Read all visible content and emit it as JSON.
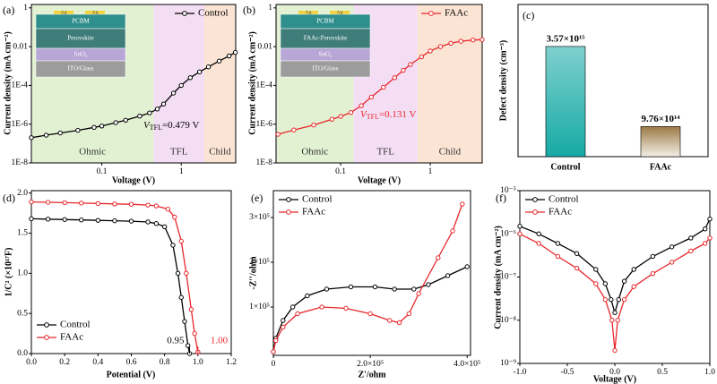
{
  "chart_data": [
    {
      "type": "line",
      "panel": "(a)",
      "xlabel": "Voltage (V)",
      "ylabel": "Current density (mA cm⁻²)",
      "xlog": true,
      "ylog": true,
      "xlim": [
        0.013,
        4.85
      ],
      "ylim": [
        1e-08,
        1.5
      ],
      "xticks": [
        0.1,
        1
      ],
      "yticks": [
        {
          "value": 1e-08,
          "label": "1E-8"
        },
        {
          "value": 1e-06,
          "label": "1E-6"
        },
        {
          "value": 0.0001,
          "label": "1E-4"
        },
        0.01,
        1
      ],
      "legend": "upper right",
      "regions": [
        {
          "label": "Ohmic",
          "from": 0.013,
          "to": 0.45,
          "color": "#e3f1d3"
        },
        {
          "label": "TFL",
          "from": 0.45,
          "to": 1.95,
          "color": "#f4def4"
        },
        {
          "label": "Child",
          "from": 1.95,
          "to": 4.85,
          "color": "#fbe4d4"
        }
      ],
      "inset": {
        "top": "Ag",
        "layers": [
          "PCBM",
          "Perovskite",
          "SnO₂",
          "ITO/Glass"
        ]
      },
      "annotation": {
        "text": "V",
        "sub": "TFL",
        "rest": "=0.479 V"
      },
      "series": [
        {
          "name": "Control",
          "color": "#000000",
          "x": [
            0.013,
            0.02,
            0.03,
            0.05,
            0.08,
            0.1,
            0.15,
            0.2,
            0.3,
            0.4,
            0.5,
            0.6,
            0.8,
            1,
            1.3,
            1.7,
            2.2,
            3,
            4,
            4.8
          ],
          "values": [
            2e-07,
            2.7e-07,
            3.5e-07,
            4.8e-07,
            6.8e-07,
            8e-07,
            1.2e-06,
            1.6e-06,
            2.6e-06,
            3.8e-06,
            6e-06,
            1.1e-05,
            4e-05,
            0.0001,
            0.00025,
            0.0005,
            0.0009,
            0.0018,
            0.0033,
            0.005
          ]
        }
      ]
    },
    {
      "type": "line",
      "panel": "(b)",
      "xlabel": "Voltage (V)",
      "ylabel": "Current density (mA cm⁻²)",
      "xlog": true,
      "ylog": true,
      "xlim": [
        0.019,
        3.8
      ],
      "ylim": [
        1e-08,
        1.5
      ],
      "xticks": [
        0.1,
        1
      ],
      "yticks": [
        {
          "value": 1e-08,
          "label": "1E-8"
        },
        {
          "value": 1e-06,
          "label": "1E-6"
        },
        {
          "value": 0.0001,
          "label": "1E-4"
        },
        0.01,
        1
      ],
      "legend": "upper right",
      "regions": [
        {
          "label": "Ohmic",
          "from": 0.019,
          "to": 0.14,
          "color": "#e3f1d3"
        },
        {
          "label": "TFL",
          "from": 0.14,
          "to": 0.72,
          "color": "#f4def4"
        },
        {
          "label": "Child",
          "from": 0.72,
          "to": 3.8,
          "color": "#fbe4d4"
        }
      ],
      "inset": {
        "top": "Ag",
        "layers": [
          "PCBM",
          "FAAc-Perovskite",
          "SnO₂",
          "ITO/Glass"
        ]
      },
      "annotation": {
        "text": "V",
        "sub": "TFL",
        "rest": "=0.131 V"
      },
      "series": [
        {
          "name": "FAAc",
          "color": "#e8262a",
          "x": [
            0.02,
            0.03,
            0.05,
            0.08,
            0.1,
            0.13,
            0.17,
            0.22,
            0.3,
            0.4,
            0.5,
            0.6,
            0.8,
            1,
            1.3,
            1.7,
            2.2,
            3,
            3.8
          ],
          "values": [
            3e-07,
            5e-07,
            9e-07,
            1.8e-06,
            2.5e-06,
            4e-06,
            9e-06,
            2.5e-05,
            8e-05,
            0.00025,
            0.0006,
            0.0012,
            0.003,
            0.006,
            0.01,
            0.015,
            0.019,
            0.022,
            0.023
          ]
        }
      ]
    },
    {
      "type": "bar",
      "panel": "(c)",
      "ylabel": "Defect density (cm⁻³)",
      "ylim": [
        0,
        4060000000000000.0
      ],
      "categories": [
        "Control",
        "FAAc"
      ],
      "values": [
        3570000000000000.0,
        976000000000000.0
      ],
      "value_labels": [
        "3.57×10¹⁵",
        "9.76×10¹⁴"
      ],
      "colors": [
        "#16aaa5",
        "#9c7a45"
      ]
    },
    {
      "type": "line",
      "panel": "(d)",
      "xlabel": "Potential (V)",
      "ylabel": "1/C² (×10¹⁷F)",
      "xlim": [
        0,
        1.2
      ],
      "ylim": [
        0,
        2.03
      ],
      "xticks": [
        {
          "value": 0,
          "label": "0.0"
        },
        0.2,
        0.4,
        0.6,
        0.8,
        {
          "value": 1,
          "label": "1.0"
        },
        1.2
      ],
      "yticks": [
        {
          "value": 0,
          "label": "0.0"
        },
        0.5,
        {
          "value": 1,
          "label": "1.0"
        },
        1.5,
        {
          "value": 2,
          "label": "2.0"
        }
      ],
      "legend": "lower left",
      "intercepts": [
        0.95,
        {
          "value": 1,
          "label": "1.00"
        }
      ],
      "series": [
        {
          "name": "Control",
          "color": "#000000",
          "x": [
            0,
            0.1,
            0.2,
            0.3,
            0.4,
            0.5,
            0.6,
            0.7,
            0.75,
            0.8,
            0.85,
            0.88,
            0.9,
            0.92,
            0.94,
            0.95
          ],
          "values": [
            1.68,
            1.675,
            1.67,
            1.665,
            1.66,
            1.655,
            1.65,
            1.64,
            1.62,
            1.58,
            1.35,
            1.0,
            0.7,
            0.4,
            0.1,
            0.0
          ]
        },
        {
          "name": "FAAc",
          "color": "#e8262a",
          "x": [
            0,
            0.1,
            0.2,
            0.3,
            0.4,
            0.5,
            0.6,
            0.7,
            0.75,
            0.82,
            0.86,
            0.9,
            0.93,
            0.96,
            0.98,
            1.0
          ],
          "values": [
            1.89,
            1.885,
            1.88,
            1.875,
            1.87,
            1.865,
            1.86,
            1.85,
            1.84,
            1.8,
            1.7,
            1.4,
            1.0,
            0.55,
            0.25,
            0.02
          ]
        }
      ]
    },
    {
      "type": "line",
      "panel": "(e)",
      "xlabel": "Z'/ohm",
      "ylabel": "-Z''/ohm",
      "xlim": [
        0,
        407000
      ],
      "ylim": [
        -8000,
        360000
      ],
      "xticks": [
        0,
        {
          "value": 200000,
          "label": "2.0×10⁵"
        },
        {
          "value": 400000,
          "label": "4.0×10⁵"
        }
      ],
      "yticks": [
        {
          "value": 100000,
          "label": "1×10⁵"
        },
        {
          "value": 200000,
          "label": "2×10⁵"
        },
        {
          "value": 300000,
          "label": "3×10⁵"
        }
      ],
      "legend": "upper left",
      "series": [
        {
          "name": "Control",
          "color": "#000000",
          "x": [
            0,
            5000,
            20000,
            40000,
            70000,
            110000,
            160000,
            210000,
            250000,
            290000,
            320000,
            360000,
            400000
          ],
          "values": [
            0,
            30000,
            70000,
            100000,
            125000,
            140000,
            145000,
            145000,
            140000,
            140000,
            150000,
            170000,
            190000
          ]
        },
        {
          "name": "FAAc",
          "color": "#e8262a",
          "x": [
            0,
            5000,
            20000,
            50000,
            100000,
            150000,
            200000,
            240000,
            260000,
            280000,
            300000,
            340000,
            370000,
            390000
          ],
          "values": [
            0,
            25000,
            55000,
            85000,
            100000,
            97000,
            85000,
            70000,
            65000,
            85000,
            130000,
            210000,
            270000,
            330000
          ]
        }
      ]
    },
    {
      "type": "line",
      "panel": "(f)",
      "xlabel": "Voltage (V)",
      "ylabel": "Current density (mA cm⁻²)",
      "ylog": true,
      "xlim": [
        -1,
        1
      ],
      "ylim": [
        1e-09,
        1e-05
      ],
      "xticks": [
        {
          "value": -1,
          "label": "-1.0"
        },
        -0.5,
        {
          "value": 0,
          "label": "0.0"
        },
        0.5,
        {
          "value": 1,
          "label": "1.0"
        }
      ],
      "yticks": [
        {
          "value": 1e-09,
          "label": "10⁻⁹"
        },
        {
          "value": 1e-08,
          "label": "10⁻⁸"
        },
        {
          "value": 1e-07,
          "label": "10⁻⁷"
        },
        {
          "value": 1e-06,
          "label": "10⁻⁶"
        },
        {
          "value": 1e-05,
          "label": "10⁻⁵"
        }
      ],
      "legend": "upper left",
      "series": [
        {
          "name": "Control",
          "color": "#000000",
          "x": [
            -1,
            -0.8,
            -0.6,
            -0.4,
            -0.2,
            -0.1,
            -0.04,
            0,
            0.04,
            0.1,
            0.2,
            0.4,
            0.6,
            0.8,
            0.95,
            1
          ],
          "values": [
            1.5e-06,
            1e-06,
            6e-07,
            3.5e-07,
            1.5e-07,
            7e-08,
            3e-08,
            1.5e-08,
            3e-08,
            8e-08,
            1.5e-07,
            3e-07,
            5e-07,
            8e-07,
            1.3e-06,
            2.2e-06
          ]
        },
        {
          "name": "FAAc",
          "color": "#e8262a",
          "x": [
            -1,
            -0.8,
            -0.6,
            -0.4,
            -0.2,
            -0.1,
            -0.03,
            0,
            0.03,
            0.1,
            0.2,
            0.4,
            0.6,
            0.8,
            0.95,
            1
          ],
          "values": [
            1e-06,
            6e-07,
            3e-07,
            1.6e-07,
            7e-08,
            3e-08,
            1e-08,
            2e-09,
            1e-08,
            3e-08,
            6e-08,
            1.2e-07,
            2.2e-07,
            4e-07,
            6e-07,
            8e-07
          ]
        }
      ]
    }
  ]
}
